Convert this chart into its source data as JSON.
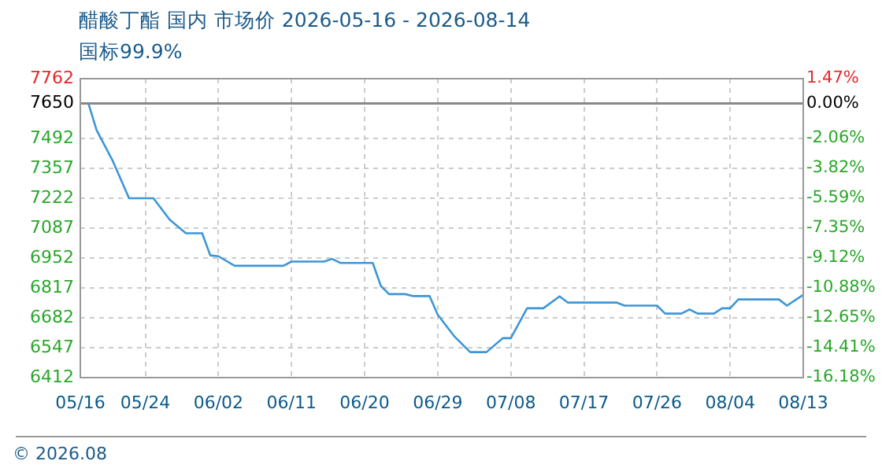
{
  "chart_data": {
    "type": "line",
    "title": "醋酸丁酯 国内 市场价 2026-05-16 - 2026-08-14",
    "subtitle": "国标99.9%",
    "annotations": [
      "© 2026.08"
    ],
    "x": [
      "2026-05-16",
      "2026-05-17",
      "2026-05-18",
      "2026-05-20",
      "2026-05-22",
      "2026-05-25",
      "2026-05-27",
      "2026-05-29",
      "2026-05-31",
      "2026-06-01",
      "2026-06-02",
      "2026-06-04",
      "2026-06-10",
      "2026-06-11",
      "2026-06-15",
      "2026-06-16",
      "2026-06-17",
      "2026-06-21",
      "2026-06-22",
      "2026-06-23",
      "2026-06-25",
      "2026-06-26",
      "2026-06-28",
      "2026-06-29",
      "2026-07-01",
      "2026-07-03",
      "2026-07-05",
      "2026-07-07",
      "2026-07-08",
      "2026-07-10",
      "2026-07-12",
      "2026-07-14",
      "2026-07-15",
      "2026-07-21",
      "2026-07-22",
      "2026-07-26",
      "2026-07-27",
      "2026-07-29",
      "2026-07-30",
      "2026-07-31",
      "2026-08-02",
      "2026-08-03",
      "2026-08-04",
      "2026-08-05",
      "2026-08-10",
      "2026-08-11",
      "2026-08-13"
    ],
    "series": [
      {
        "color": "#3d96d6",
        "values": [
          7650,
          7650,
          7530,
          7390,
          7222,
          7222,
          7125,
          7064,
          7064,
          6964,
          6960,
          6917,
          6917,
          6936,
          6936,
          6948,
          6930,
          6930,
          6826,
          6789,
          6789,
          6780,
          6780,
          6696,
          6600,
          6527,
          6527,
          6590,
          6590,
          6725,
          6725,
          6779,
          6751,
          6751,
          6737,
          6737,
          6701,
          6701,
          6720,
          6701,
          6701,
          6725,
          6725,
          6765,
          6765,
          6737,
          6786
        ]
      }
    ],
    "xlim": [
      "2026-05-16",
      "2026-08-13"
    ],
    "xticks": [
      {
        "value": "2026-05-16",
        "label": "05/16"
      },
      {
        "value": "2026-05-24",
        "label": "05/24"
      },
      {
        "value": "2026-06-02",
        "label": "06/02"
      },
      {
        "value": "2026-06-11",
        "label": "06/11"
      },
      {
        "value": "2026-06-20",
        "label": "06/20"
      },
      {
        "value": "2026-06-29",
        "label": "06/29"
      },
      {
        "value": "2026-07-08",
        "label": "07/08"
      },
      {
        "value": "2026-07-17",
        "label": "07/17"
      },
      {
        "value": "2026-07-26",
        "label": "07/26"
      },
      {
        "value": "2026-08-04",
        "label": "08/04"
      },
      {
        "value": "2026-08-13",
        "label": "08/13"
      }
    ],
    "ylim": [
      6412,
      7762
    ],
    "yticks": [
      6412,
      6547,
      6682,
      6817,
      6952,
      7087,
      7222,
      7357,
      7492,
      7650,
      7762
    ],
    "y2lim": [
      -16.18,
      1.47
    ],
    "y2ticks": [
      {
        "value": -16.18,
        "label": "-16.18%"
      },
      {
        "value": -14.41,
        "label": "-14.41%"
      },
      {
        "value": -12.65,
        "label": "-12.65%"
      },
      {
        "value": -10.88,
        "label": "-10.88%"
      },
      {
        "value": -9.12,
        "label": "-9.12%"
      },
      {
        "value": -7.35,
        "label": "-7.35%"
      },
      {
        "value": -5.59,
        "label": "-5.59%"
      },
      {
        "value": -3.82,
        "label": "-3.82%"
      },
      {
        "value": -2.06,
        "label": "-2.06%"
      },
      {
        "value": 0,
        "label": "0.00%"
      },
      {
        "value": 1.47,
        "label": "1.47%"
      }
    ],
    "ref_lines": [
      {
        "axis": "y",
        "value": 7650,
        "color": "#888888"
      }
    ],
    "grid": true,
    "line_style": "solid",
    "marker": "none",
    "legend": false
  }
}
